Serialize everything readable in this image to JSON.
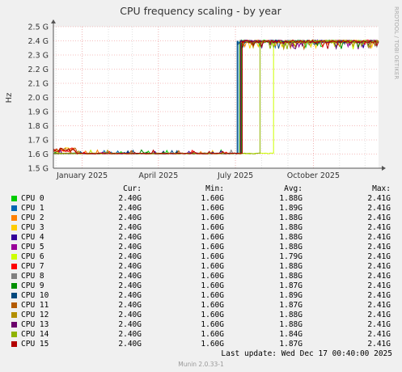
{
  "chart_data": {
    "type": "line",
    "title": "CPU frequency scaling - by year",
    "ylabel": "Hz",
    "side_label": "RRDTOOL / TOBI OETIKER",
    "ylim": [
      1.5,
      2.5
    ],
    "y_ticks": [
      {
        "value": 1.5,
        "label": "1.5 G"
      },
      {
        "value": 1.6,
        "label": "1.6 G"
      },
      {
        "value": 1.7,
        "label": "1.7 G"
      },
      {
        "value": 1.8,
        "label": "1.8 G"
      },
      {
        "value": 1.9,
        "label": "1.9 G"
      },
      {
        "value": 2.0,
        "label": "2.0 G"
      },
      {
        "value": 2.1,
        "label": "2.1 G"
      },
      {
        "value": 2.2,
        "label": "2.2 G"
      },
      {
        "value": 2.3,
        "label": "2.3 G"
      },
      {
        "value": 2.4,
        "label": "2.4 G"
      },
      {
        "value": 2.5,
        "label": "2.5 G"
      }
    ],
    "x_range": [
      "2024-11-28",
      "2025-12-17"
    ],
    "x_ticks": [
      {
        "date": "2025-01-01",
        "label": "January 2025"
      },
      {
        "date": "2025-04-01",
        "label": "April 2025"
      },
      {
        "date": "2025-07-01",
        "label": "July 2025"
      },
      {
        "date": "2025-10-01",
        "label": "October 2025"
      }
    ],
    "grid": true,
    "series": [
      {
        "name": "CPU 0",
        "color": "#00cc00",
        "switch": "2025-07-06",
        "cur": "2.40G",
        "min": "1.60G",
        "avg": "1.88G",
        "max": "2.41G"
      },
      {
        "name": "CPU 1",
        "color": "#0066b3",
        "switch": "2025-07-04",
        "cur": "2.40G",
        "min": "1.60G",
        "avg": "1.89G",
        "max": "2.41G"
      },
      {
        "name": "CPU 2",
        "color": "#ff8000",
        "switch": "2025-07-07",
        "cur": "2.40G",
        "min": "1.60G",
        "avg": "1.88G",
        "max": "2.41G"
      },
      {
        "name": "CPU 3",
        "color": "#ffcc00",
        "switch": "2025-07-07",
        "cur": "2.40G",
        "min": "1.60G",
        "avg": "1.88G",
        "max": "2.41G"
      },
      {
        "name": "CPU 4",
        "color": "#330099",
        "switch": "2025-07-07",
        "cur": "2.40G",
        "min": "1.60G",
        "avg": "1.88G",
        "max": "2.41G"
      },
      {
        "name": "CPU 5",
        "color": "#990099",
        "switch": "2025-07-07",
        "cur": "2.40G",
        "min": "1.60G",
        "avg": "1.88G",
        "max": "2.41G"
      },
      {
        "name": "CPU 6",
        "color": "#ccff00",
        "switch": "2025-08-15",
        "cur": "2.40G",
        "min": "1.60G",
        "avg": "1.79G",
        "max": "2.41G"
      },
      {
        "name": "CPU 7",
        "color": "#ff0000",
        "switch": "2025-07-07",
        "cur": "2.40G",
        "min": "1.60G",
        "avg": "1.88G",
        "max": "2.41G"
      },
      {
        "name": "CPU 8",
        "color": "#808080",
        "switch": "2025-07-07",
        "cur": "2.40G",
        "min": "1.60G",
        "avg": "1.88G",
        "max": "2.41G"
      },
      {
        "name": "CPU 9",
        "color": "#008f00",
        "switch": "2025-07-08",
        "cur": "2.40G",
        "min": "1.60G",
        "avg": "1.87G",
        "max": "2.41G"
      },
      {
        "name": "CPU 10",
        "color": "#00487d",
        "switch": "2025-07-03",
        "cur": "2.40G",
        "min": "1.60G",
        "avg": "1.89G",
        "max": "2.41G"
      },
      {
        "name": "CPU 11",
        "color": "#b35a00",
        "switch": "2025-07-09",
        "cur": "2.40G",
        "min": "1.60G",
        "avg": "1.87G",
        "max": "2.41G"
      },
      {
        "name": "CPU 12",
        "color": "#b38f00",
        "switch": "2025-07-07",
        "cur": "2.40G",
        "min": "1.60G",
        "avg": "1.88G",
        "max": "2.41G"
      },
      {
        "name": "CPU 13",
        "color": "#6b006b",
        "switch": "2025-07-07",
        "cur": "2.40G",
        "min": "1.60G",
        "avg": "1.88G",
        "max": "2.41G"
      },
      {
        "name": "CPU 14",
        "color": "#8fb300",
        "switch": "2025-07-30",
        "cur": "2.40G",
        "min": "1.60G",
        "avg": "1.84G",
        "max": "2.41G"
      },
      {
        "name": "CPU 15",
        "color": "#b30000",
        "switch": "2025-07-09",
        "cur": "2.40G",
        "min": "1.60G",
        "avg": "1.87G",
        "max": "2.41G"
      }
    ]
  },
  "legend": {
    "cur_label": "Cur:",
    "min_label": "Min:",
    "avg_label": "Avg:",
    "max_label": "Max:"
  },
  "footer": {
    "last_update": "Last update: Wed Dec 17 00:40:00 2025",
    "credit": "Munin 2.0.33-1"
  }
}
